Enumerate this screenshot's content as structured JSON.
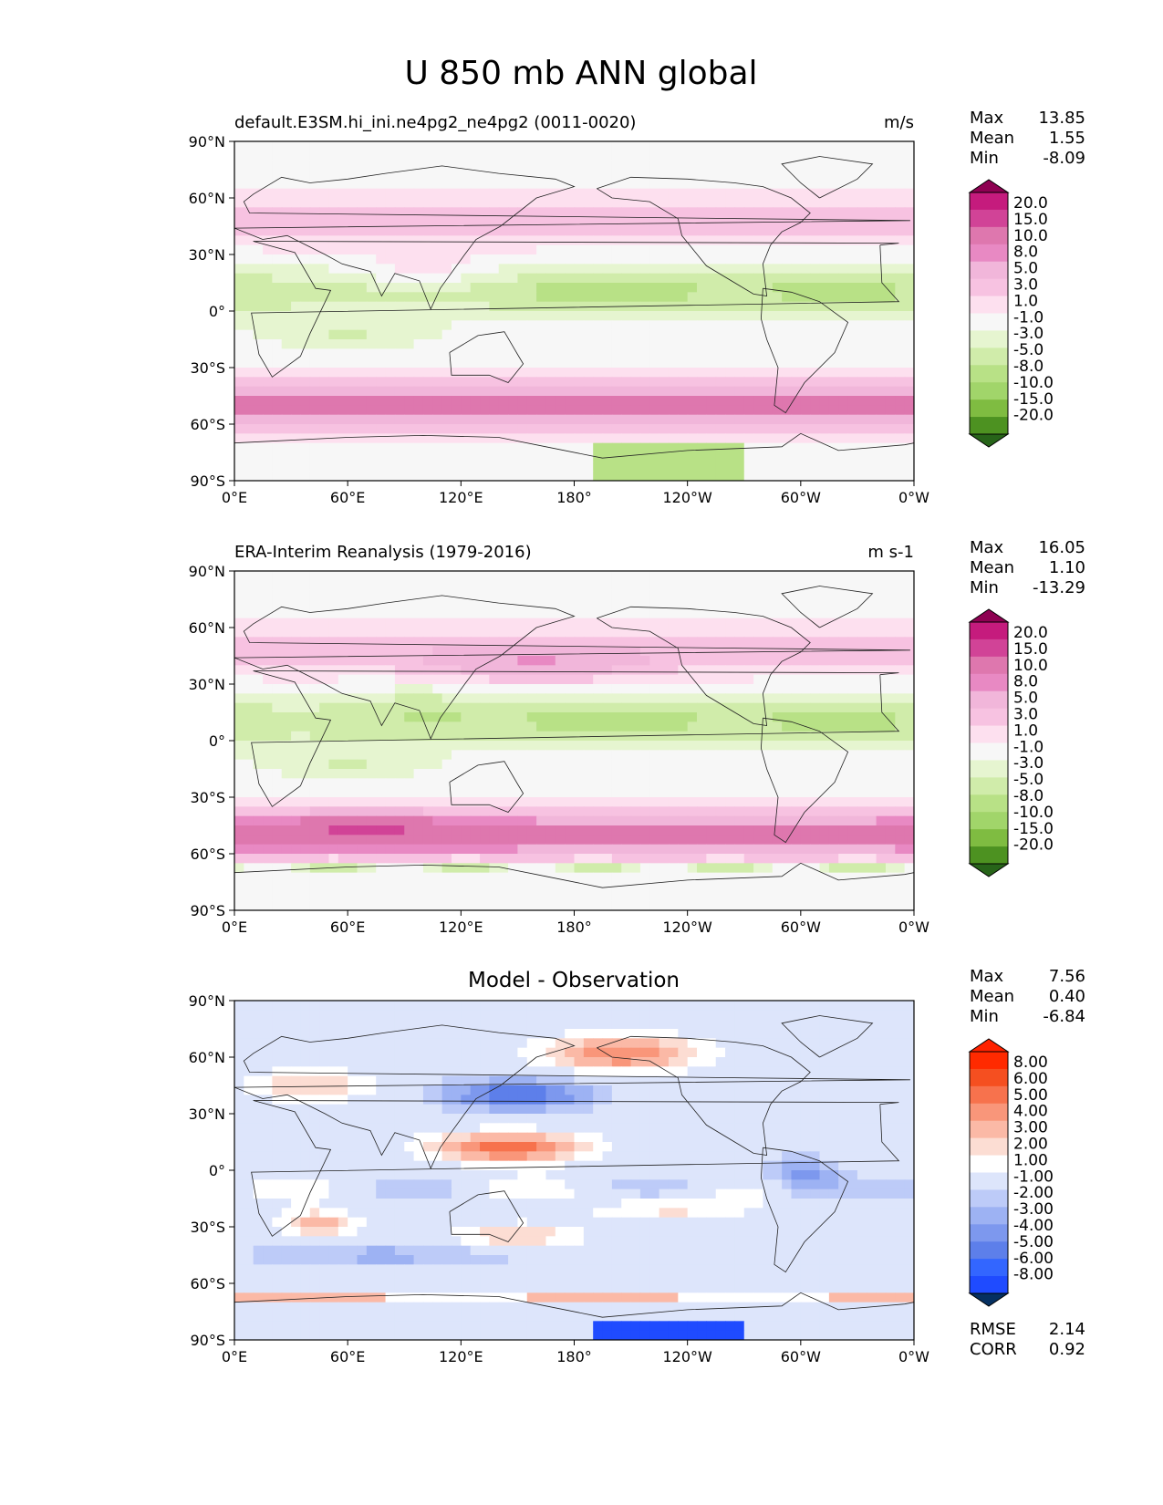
{
  "title": "U 850 mb ANN global",
  "colors": {
    "seq_levels": [
      "#276419",
      "#4d9221",
      "#7fbc41",
      "#a1d56a",
      "#b8e186",
      "#d0ecaa",
      "#e6f5d0",
      "#f7f7f7",
      "#fde0ef",
      "#f7c2e1",
      "#f1b6da",
      "#e889c3",
      "#de77ae",
      "#d14397",
      "#c51b7d",
      "#8e0152"
    ],
    "diff_levels": [
      "#053061",
      "#1f4bff",
      "#3366ff",
      "#5d7fea",
      "#7d98ee",
      "#9db2f3",
      "#bdcbf8",
      "#dde5fb",
      "#ffffff",
      "#fcddd3",
      "#fbb9a6",
      "#f9967a",
      "#f7724d",
      "#f54f20",
      "#ff2a00",
      "#ff2200"
    ]
  },
  "chart_data": [
    {
      "type": "heatmap",
      "panel": "model",
      "left_title": "default.E3SM.hi_ini.ne4pg2_ne4pg2 (0011-0020)",
      "right_title": "m/s",
      "stats": [
        {
          "label": "Max",
          "value": "13.85"
        },
        {
          "label": "Mean",
          "value": "1.55"
        },
        {
          "label": "Min",
          "value": "-8.09"
        }
      ],
      "colorbar_labels": [
        "20.0",
        "15.0",
        "10.0",
        "8.0",
        "5.0",
        "3.0",
        "1.0",
        "-1.0",
        "-3.0",
        "-5.0",
        "-8.0",
        "-10.0",
        "-15.0",
        "-20.0"
      ],
      "x_ticks": [
        "0°E",
        "60°E",
        "120°E",
        "180°",
        "120°W",
        "60°W",
        "0°W"
      ],
      "y_ticks": [
        "90°N",
        "60°N",
        "30°N",
        "0°",
        "30°S",
        "60°S",
        "90°S"
      ],
      "xlim": [
        0,
        360
      ],
      "ylim": [
        -90,
        90
      ]
    },
    {
      "type": "heatmap",
      "panel": "obs",
      "left_title": "ERA-Interim Reanalysis (1979-2016)",
      "right_title": "m s-1",
      "stats": [
        {
          "label": "Max",
          "value": "16.05"
        },
        {
          "label": "Mean",
          "value": "1.10"
        },
        {
          "label": "Min",
          "value": "-13.29"
        }
      ],
      "colorbar_labels": [
        "20.0",
        "15.0",
        "10.0",
        "8.0",
        "5.0",
        "3.0",
        "1.0",
        "-1.0",
        "-3.0",
        "-5.0",
        "-8.0",
        "-10.0",
        "-15.0",
        "-20.0"
      ],
      "x_ticks": [
        "0°E",
        "60°E",
        "120°E",
        "180°",
        "120°W",
        "60°W",
        "0°W"
      ],
      "y_ticks": [
        "90°N",
        "60°N",
        "30°N",
        "0°",
        "30°S",
        "60°S",
        "90°S"
      ],
      "xlim": [
        0,
        360
      ],
      "ylim": [
        -90,
        90
      ]
    },
    {
      "type": "heatmap",
      "panel": "diff",
      "center_title": "Model - Observation",
      "stats": [
        {
          "label": "Max",
          "value": "7.56"
        },
        {
          "label": "Mean",
          "value": "0.40"
        },
        {
          "label": "Min",
          "value": "-6.84"
        }
      ],
      "extra_stats": [
        {
          "label": "RMSE",
          "value": "2.14"
        },
        {
          "label": "CORR",
          "value": "0.92"
        }
      ],
      "colorbar_labels": [
        "8.00",
        "6.00",
        "5.00",
        "4.00",
        "3.00",
        "2.00",
        "1.00",
        "-1.00",
        "-2.00",
        "-3.00",
        "-4.00",
        "-5.00",
        "-6.00",
        "-8.00"
      ],
      "x_ticks": [
        "0°E",
        "60°E",
        "120°E",
        "180°",
        "120°W",
        "60°W",
        "0°W"
      ],
      "y_ticks": [
        "90°N",
        "60°N",
        "30°N",
        "0°",
        "30°S",
        "60°S",
        "90°S"
      ],
      "xlim": [
        0,
        360
      ],
      "ylim": [
        -90,
        90
      ]
    }
  ]
}
